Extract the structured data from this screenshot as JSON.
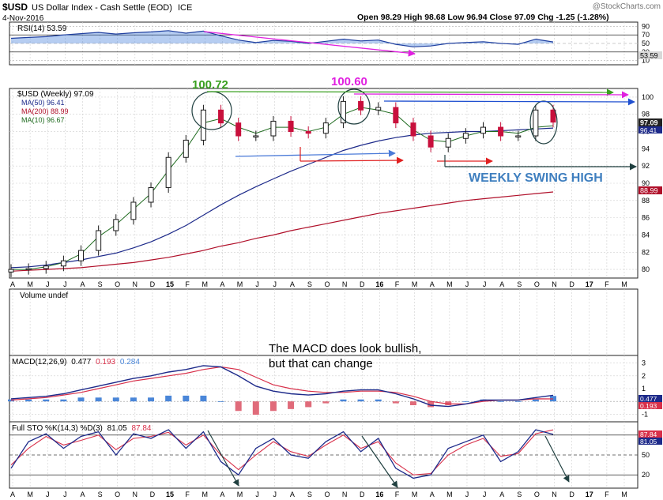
{
  "header": {
    "symbol": "$USD",
    "name": "US Dollar Index - Cash Settle (EOD)",
    "exchange": "ICE",
    "date": "4-Nov-2016",
    "ohlc_text": "Open 98.29  High 98.68  Low 96.94  Close 97.09  Chg -1.25 (-1.28%)",
    "watermark": "@StockCharts.com"
  },
  "colors": {
    "price_up": "#1a1a1a",
    "price_down": "#c8103c",
    "ma50": "#1d2a8a",
    "ma200": "#b0102a",
    "ma10": "#1f6b1f",
    "rsi_line": "#1f3f9f",
    "rsi_fill": "#2f6fd6",
    "macd_line": "#1d2a8a",
    "macd_signal": "#d8304a",
    "hist_pos": "#4a86d8",
    "hist_neg": "#e06b7a",
    "annot_green": "#3aa020",
    "annot_magenta": "#e020e0",
    "annot_blue": "#2060e0",
    "annot_red": "#e02020",
    "annot_dark": "#204040"
  },
  "labels": {
    "rsi": "RSI(14) 53.59",
    "rsi_value": "53.59",
    "price_legend": "$USD (Weekly) 97.09",
    "ma50": "MA(50) 96.41",
    "ma200": "MA(200) 88.99",
    "ma10": "MA(10) 96.67",
    "volume": "Volume undef",
    "macd_prefix": "MACD(12,26,9)",
    "macd_v1": "0.477",
    "macd_v2": "0.193",
    "macd_v3": "0.284",
    "sto_prefix": "Full STO %K(14,3) %D(3)",
    "sto_v1": "81.05",
    "sto_v2": "87.84",
    "ann_high1": "100.72",
    "ann_high2": "100.60",
    "ann_swing": "WEEKLY SWING HIGH",
    "ann_macd1": "The MACD does look bullish,",
    "ann_macd2": "but that can change"
  },
  "axes": {
    "rsi_ticks": [
      "90",
      "70",
      "50",
      "30",
      "10"
    ],
    "price_ticks": [
      "100",
      "98",
      "96",
      "94",
      "92",
      "90",
      "88",
      "86",
      "84",
      "82",
      "80"
    ],
    "macd_ticks": [
      "3",
      "2",
      "1",
      "0",
      "-1"
    ],
    "sto_ticks": [
      "80",
      "50",
      "20"
    ],
    "right_boxes": {
      "rsi": "53.59",
      "price_top": "98",
      "price_close": "97.09",
      "price_ma": "96.41",
      "ma200": "88.99",
      "macd_a": "0.477",
      "macd_b": "0.193",
      "sto_a": "87.84",
      "sto_b": "81.05"
    },
    "x_labels": [
      "A",
      "M",
      "J",
      "J",
      "A",
      "S",
      "O",
      "N",
      "D",
      "15",
      "F",
      "M",
      "A",
      "M",
      "J",
      "J",
      "A",
      "S",
      "O",
      "N",
      "D",
      "16",
      "F",
      "M",
      "A",
      "M",
      "J",
      "J",
      "A",
      "S",
      "O",
      "N",
      "D",
      "17",
      "F",
      "M"
    ]
  },
  "chart_data": {
    "type": "line",
    "title": "$USD (Weekly) 97.09",
    "x": [
      "2014-04",
      "2014-05",
      "2014-06",
      "2014-07",
      "2014-08",
      "2014-09",
      "2014-10",
      "2014-11",
      "2014-12",
      "2015-01",
      "2015-02",
      "2015-03",
      "2015-04",
      "2015-05",
      "2015-06",
      "2015-07",
      "2015-08",
      "2015-09",
      "2015-10",
      "2015-11",
      "2015-12",
      "2016-01",
      "2016-02",
      "2016-03",
      "2016-04",
      "2016-05",
      "2016-06",
      "2016-07",
      "2016-08",
      "2016-09",
      "2016-10",
      "2016-11"
    ],
    "series": [
      {
        "name": "$USD (Weekly) 97.09",
        "values": [
          80.0,
          80.1,
          80.4,
          81.0,
          82.2,
          84.5,
          85.8,
          87.8,
          89.5,
          93.0,
          95.0,
          98.5,
          97.0,
          95.5,
          95.5,
          97.2,
          96.0,
          95.8,
          97.0,
          99.5,
          98.5,
          98.8,
          97.0,
          95.5,
          94.2,
          95.2,
          95.8,
          96.5,
          95.5,
          95.5,
          98.5,
          97.09
        ]
      },
      {
        "name": "MA(50) 96.41",
        "values": [
          80.2,
          80.3,
          80.5,
          80.8,
          81.1,
          81.5,
          81.9,
          82.5,
          83.2,
          84.1,
          85.1,
          86.3,
          87.5,
          88.6,
          89.6,
          90.5,
          91.4,
          92.2,
          93.0,
          93.8,
          94.4,
          94.9,
          95.3,
          95.6,
          95.8,
          95.9,
          96.0,
          96.0,
          96.1,
          96.2,
          96.3,
          96.41
        ]
      },
      {
        "name": "MA(200) 88.99",
        "values": [
          79.8,
          79.9,
          80.0,
          80.1,
          80.2,
          80.4,
          80.6,
          80.8,
          81.1,
          81.4,
          81.8,
          82.2,
          82.7,
          83.1,
          83.6,
          84.0,
          84.5,
          84.9,
          85.3,
          85.7,
          86.1,
          86.5,
          86.8,
          87.1,
          87.4,
          87.7,
          88.0,
          88.2,
          88.4,
          88.6,
          88.8,
          88.99
        ]
      },
      {
        "name": "MA(10) 96.67",
        "values": [
          80.0,
          80.0,
          80.3,
          80.8,
          81.8,
          83.8,
          85.2,
          87.0,
          88.8,
          91.5,
          94.0,
          97.0,
          97.5,
          96.5,
          95.8,
          96.5,
          96.5,
          96.0,
          96.5,
          98.0,
          98.8,
          98.5,
          98.0,
          96.2,
          95.0,
          94.8,
          95.5,
          96.0,
          96.0,
          95.8,
          96.5,
          96.67
        ]
      }
    ],
    "ylim": [
      79,
      101
    ],
    "indicators": {
      "rsi14": [
        62,
        64,
        66,
        70,
        73,
        76,
        72,
        75,
        77,
        80,
        74,
        79,
        68,
        58,
        52,
        57,
        55,
        50,
        55,
        60,
        56,
        58,
        48,
        42,
        44,
        50,
        52,
        54,
        50,
        48,
        60,
        53.59
      ],
      "macd": [
        0.2,
        0.3,
        0.4,
        0.6,
        0.9,
        1.2,
        1.5,
        1.8,
        2.0,
        2.3,
        2.5,
        2.8,
        2.7,
        2.0,
        1.2,
        0.8,
        0.6,
        0.5,
        0.6,
        0.8,
        0.9,
        0.9,
        0.6,
        0.2,
        -0.3,
        -0.4,
        -0.2,
        0.1,
        0.1,
        0.1,
        0.3,
        0.477
      ],
      "macd_signal": [
        0.1,
        0.2,
        0.3,
        0.5,
        0.7,
        1.0,
        1.3,
        1.6,
        1.8,
        2.0,
        2.2,
        2.5,
        2.7,
        2.5,
        1.9,
        1.3,
        1.0,
        0.8,
        0.7,
        0.7,
        0.8,
        0.8,
        0.7,
        0.4,
        0.0,
        -0.2,
        -0.2,
        0.0,
        0.1,
        0.1,
        0.2,
        0.193
      ],
      "sto_k": [
        30,
        70,
        82,
        60,
        78,
        85,
        50,
        82,
        75,
        88,
        60,
        85,
        40,
        20,
        60,
        75,
        50,
        45,
        70,
        85,
        55,
        75,
        30,
        15,
        20,
        60,
        70,
        80,
        40,
        55,
        88,
        81.05
      ],
      "sto_d": [
        35,
        60,
        78,
        65,
        72,
        80,
        58,
        75,
        78,
        84,
        65,
        80,
        50,
        28,
        50,
        70,
        55,
        48,
        65,
        80,
        60,
        70,
        38,
        20,
        22,
        50,
        65,
        75,
        48,
        52,
        82,
        87.84
      ]
    },
    "annotations": [
      "100.72",
      "100.60",
      "WEEKLY SWING HIGH",
      "The MACD does look bullish,",
      "but that can change"
    ]
  }
}
